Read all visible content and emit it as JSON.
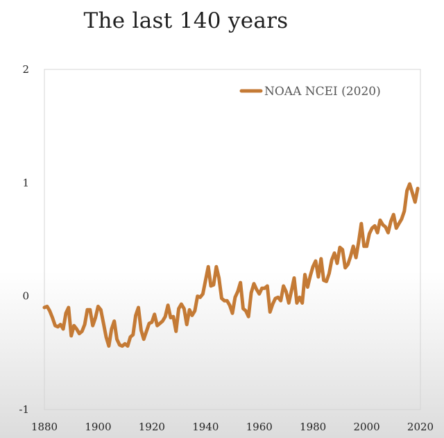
{
  "header": {
    "title": "The last 140 years"
  },
  "colors": {
    "series": "#c47a35",
    "frame": "#d4d4d4",
    "text": "#222222"
  },
  "chart_data": {
    "type": "line",
    "title": "The last 140 years",
    "xlabel": "",
    "ylabel": "",
    "xlim": [
      1880,
      2020
    ],
    "ylim": [
      -1,
      2
    ],
    "xticks": [
      1880,
      1900,
      1920,
      1940,
      1960,
      1980,
      2000,
      2020
    ],
    "yticks": [
      -1,
      0,
      1,
      2
    ],
    "grid": false,
    "legend": "top-right",
    "series": [
      {
        "name": "NOAA NCEI (2020)",
        "x": [
          1880,
          1881,
          1882,
          1883,
          1884,
          1885,
          1886,
          1887,
          1888,
          1889,
          1890,
          1891,
          1892,
          1893,
          1894,
          1895,
          1896,
          1897,
          1898,
          1899,
          1900,
          1901,
          1902,
          1903,
          1904,
          1905,
          1906,
          1907,
          1908,
          1909,
          1910,
          1911,
          1912,
          1913,
          1914,
          1915,
          1916,
          1917,
          1918,
          1919,
          1920,
          1921,
          1922,
          1923,
          1924,
          1925,
          1926,
          1927,
          1928,
          1929,
          1930,
          1931,
          1932,
          1933,
          1934,
          1935,
          1936,
          1937,
          1938,
          1939,
          1940,
          1941,
          1942,
          1943,
          1944,
          1945,
          1946,
          1947,
          1948,
          1949,
          1950,
          1951,
          1952,
          1953,
          1954,
          1955,
          1956,
          1957,
          1958,
          1959,
          1960,
          1961,
          1962,
          1963,
          1964,
          1965,
          1966,
          1967,
          1968,
          1969,
          1970,
          1971,
          1972,
          1973,
          1974,
          1975,
          1976,
          1977,
          1978,
          1979,
          1980,
          1981,
          1982,
          1983,
          1984,
          1985,
          1986,
          1987,
          1988,
          1989,
          1990,
          1991,
          1992,
          1993,
          1994,
          1995,
          1996,
          1997,
          1998,
          1999,
          2000,
          2001,
          2002,
          2003,
          2004,
          2005,
          2006,
          2007,
          2008,
          2009,
          2010,
          2011,
          2012,
          2013,
          2014,
          2015,
          2016,
          2017,
          2018,
          2019
        ],
        "values": [
          -0.1,
          -0.09,
          -0.13,
          -0.19,
          -0.26,
          -0.27,
          -0.25,
          -0.29,
          -0.15,
          -0.1,
          -0.35,
          -0.26,
          -0.29,
          -0.33,
          -0.31,
          -0.25,
          -0.12,
          -0.12,
          -0.26,
          -0.19,
          -0.09,
          -0.12,
          -0.24,
          -0.36,
          -0.44,
          -0.29,
          -0.22,
          -0.38,
          -0.43,
          -0.44,
          -0.42,
          -0.44,
          -0.36,
          -0.34,
          -0.17,
          -0.1,
          -0.3,
          -0.38,
          -0.31,
          -0.24,
          -0.23,
          -0.16,
          -0.26,
          -0.24,
          -0.22,
          -0.18,
          -0.08,
          -0.19,
          -0.18,
          -0.31,
          -0.11,
          -0.07,
          -0.11,
          -0.25,
          -0.12,
          -0.17,
          -0.13,
          0.0,
          -0.01,
          0.02,
          0.14,
          0.26,
          0.09,
          0.1,
          0.26,
          0.16,
          -0.02,
          -0.04,
          -0.04,
          -0.08,
          -0.15,
          -0.01,
          0.04,
          0.12,
          -0.11,
          -0.13,
          -0.18,
          0.03,
          0.11,
          0.06,
          0.02,
          0.07,
          0.07,
          0.09,
          -0.14,
          -0.07,
          -0.02,
          -0.01,
          -0.04,
          0.09,
          0.04,
          -0.06,
          0.05,
          0.16,
          -0.06,
          -0.01,
          -0.06,
          0.19,
          0.08,
          0.18,
          0.26,
          0.31,
          0.17,
          0.33,
          0.14,
          0.13,
          0.2,
          0.32,
          0.38,
          0.29,
          0.43,
          0.41,
          0.25,
          0.28,
          0.35,
          0.44,
          0.34,
          0.48,
          0.64,
          0.44,
          0.44,
          0.55,
          0.6,
          0.62,
          0.56,
          0.67,
          0.63,
          0.61,
          0.56,
          0.66,
          0.72,
          0.6,
          0.64,
          0.68,
          0.75,
          0.93,
          0.99,
          0.91,
          0.83,
          0.95
        ]
      }
    ]
  }
}
